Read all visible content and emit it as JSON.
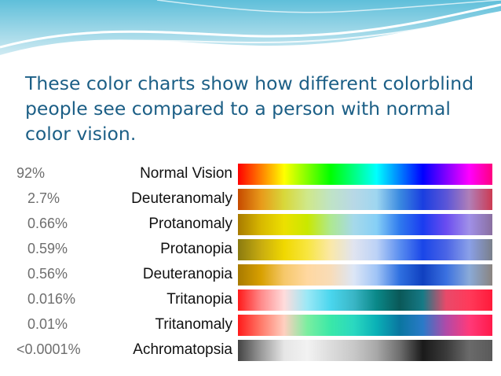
{
  "slide": {
    "title": "These color charts show how different colorblind people see compared to a person with normal color vision."
  },
  "colors": {
    "title_text": "#1c5f86",
    "wave_light": "#cfeaf2",
    "wave_mid": "#8fd0e3",
    "wave_dark": "#3fa9c9"
  },
  "chart_data": {
    "type": "table",
    "rows": [
      {
        "percent": "92%",
        "name": "Normal Vision",
        "gradient": [
          "#ff0000",
          "#ff8000",
          "#ffff00",
          "#80ff00",
          "#00ff00",
          "#00ff80",
          "#00ffff",
          "#0080ff",
          "#0000ff",
          "#8000ff",
          "#ff00ff",
          "#ff0080"
        ]
      },
      {
        "percent": "2.7%",
        "name": "Deuteranomaly",
        "gradient": [
          "#c64a00",
          "#e89a1a",
          "#d8d83a",
          "#cfe88a",
          "#bfe3c6",
          "#b8d8e6",
          "#9ed6f0",
          "#3a8ae0",
          "#1a3ee0",
          "#5a55d8",
          "#b07fb8",
          "#cc3a52"
        ]
      },
      {
        "percent": "0.66%",
        "name": "Protanomaly",
        "gradient": [
          "#a87a00",
          "#d8b800",
          "#ece000",
          "#c9e800",
          "#aee890",
          "#a6d9ea",
          "#86cff6",
          "#2f7aee",
          "#1a3cf0",
          "#6a4cf0",
          "#a090e8",
          "#8a6fa0"
        ]
      },
      {
        "percent": "0.59%",
        "name": "Protanopia",
        "gradient": [
          "#8a7a10",
          "#c8ac10",
          "#f0d800",
          "#f8e640",
          "#fae8a8",
          "#e0e4f0",
          "#bcd2f6",
          "#5a8ef0",
          "#1a46e8",
          "#4a64e6",
          "#8aa0e8",
          "#7a7f8a"
        ]
      },
      {
        "percent": "0.56%",
        "name": "Deuteranopia",
        "gradient": [
          "#a87a00",
          "#d8a000",
          "#f6c86a",
          "#ffd8a0",
          "#f8dcb8",
          "#dce6f6",
          "#a0c4f6",
          "#2f70e0",
          "#1040c0",
          "#3a70e0",
          "#8aaad8",
          "#8a8480"
        ]
      },
      {
        "percent": "0.016%",
        "name": "Tritanopia",
        "gradient": [
          "#ff1a1a",
          "#ff8a8a",
          "#ffdcdc",
          "#9ae8f6",
          "#4ad6ee",
          "#3ab6c6",
          "#0a8888",
          "#0a5858",
          "#167a86",
          "#e84a6a",
          "#ff3a5a",
          "#ff1a3a"
        ]
      },
      {
        "percent": "0.01%",
        "name": "Tritanomaly",
        "gradient": [
          "#ff1a1a",
          "#ff7a6a",
          "#ffcfc0",
          "#7aeea0",
          "#3ae8a8",
          "#2ad8c0",
          "#0ab0b6",
          "#0a76a0",
          "#2a7ac8",
          "#b04aa8",
          "#ff3a7a",
          "#ff1a4a"
        ]
      },
      {
        "percent": "<0.0001%",
        "name": "Achromatopsia",
        "gradient": [
          "#444444",
          "#9a9a9a",
          "#e6e6e6",
          "#f2f2f2",
          "#dcdcdc",
          "#c8c8c8",
          "#a8a8a8",
          "#6e6e6e",
          "#1a1a1a",
          "#3a3a3a",
          "#6a6a6a",
          "#5a5a5a"
        ]
      }
    ]
  }
}
